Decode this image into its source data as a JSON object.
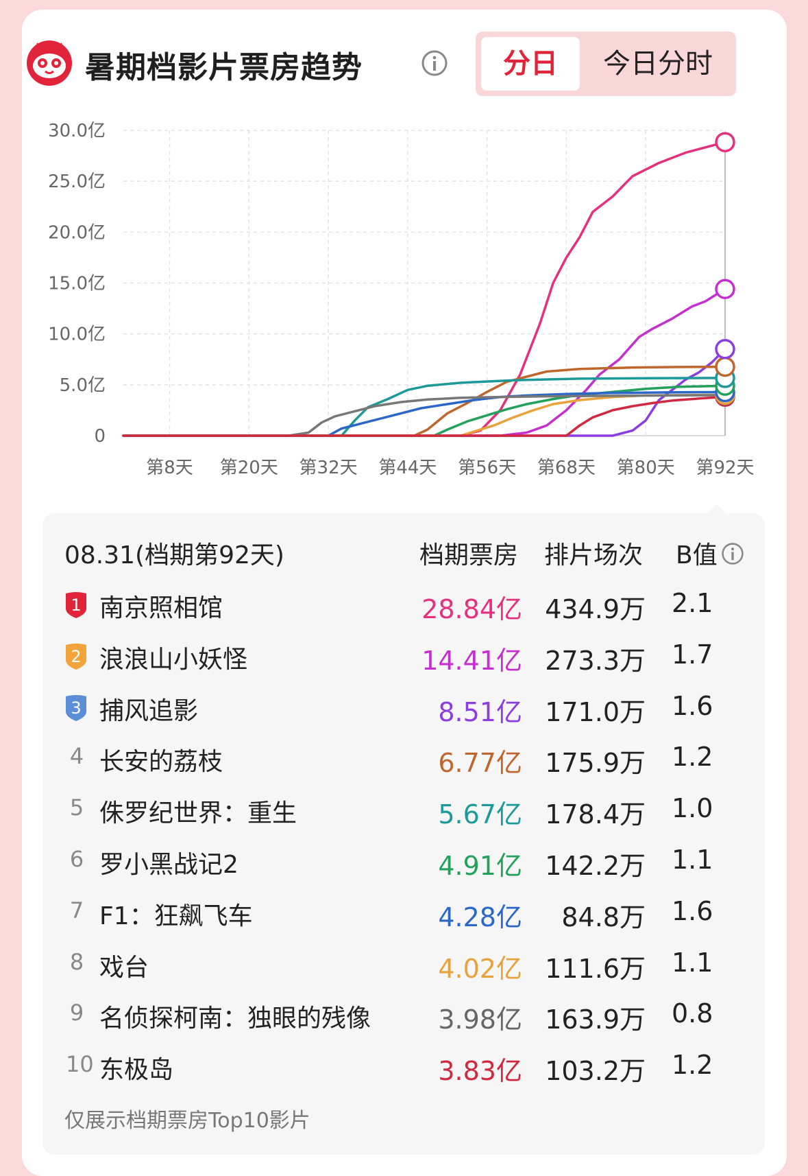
{
  "header": {
    "title": "暑期档影片票房趋势",
    "tabs": [
      {
        "label": "分日",
        "active": true
      },
      {
        "label": "今日分时",
        "active": false
      }
    ]
  },
  "chart_data": {
    "type": "line",
    "y_ticks": [
      "30.0亿",
      "25.0亿",
      "20.0亿",
      "15.0亿",
      "10.0亿",
      "5.0亿",
      "0"
    ],
    "x_ticks": [
      "第8天",
      "第20天",
      "第32天",
      "第44天",
      "第56天",
      "第68天",
      "第80天",
      "第92天"
    ],
    "x_tick_values": [
      8,
      20,
      32,
      44,
      56,
      68,
      80,
      92
    ],
    "xlim": [
      1,
      92
    ],
    "ylim": [
      0,
      30
    ],
    "grid": true,
    "series": [
      {
        "color": "#e5307e",
        "points": [
          [
            1,
            0
          ],
          [
            52,
            0
          ],
          [
            55,
            0.5
          ],
          [
            58,
            2.5
          ],
          [
            61,
            6
          ],
          [
            64,
            11
          ],
          [
            66,
            15
          ],
          [
            68,
            17.5
          ],
          [
            70,
            19.5
          ],
          [
            72,
            22
          ],
          [
            75,
            23.5
          ],
          [
            78,
            25.5
          ],
          [
            82,
            26.8
          ],
          [
            86,
            27.8
          ],
          [
            92,
            28.84
          ]
        ]
      },
      {
        "color": "#c62fcf",
        "points": [
          [
            1,
            0
          ],
          [
            58,
            0
          ],
          [
            62,
            0.3
          ],
          [
            65,
            1
          ],
          [
            68,
            2.5
          ],
          [
            71,
            4.5
          ],
          [
            73,
            6
          ],
          [
            76,
            7.5
          ],
          [
            79,
            9.7
          ],
          [
            81,
            10.5
          ],
          [
            84,
            11.5
          ],
          [
            87,
            12.7
          ],
          [
            89,
            13.2
          ],
          [
            92,
            14.41
          ]
        ]
      },
      {
        "color": "#8c3de0",
        "points": [
          [
            1,
            0
          ],
          [
            75,
            0
          ],
          [
            78,
            0.5
          ],
          [
            80,
            1.5
          ],
          [
            82,
            3.5
          ],
          [
            84,
            4.5
          ],
          [
            86,
            5.5
          ],
          [
            88,
            6.2
          ],
          [
            90,
            7.2
          ],
          [
            92,
            8.51
          ]
        ]
      },
      {
        "color": "#c0662c",
        "points": [
          [
            1,
            0
          ],
          [
            45,
            0
          ],
          [
            47,
            0.6
          ],
          [
            50,
            2.2
          ],
          [
            53,
            3.2
          ],
          [
            56,
            4.3
          ],
          [
            59,
            5.3
          ],
          [
            62,
            5.8
          ],
          [
            65,
            6.3
          ],
          [
            70,
            6.55
          ],
          [
            78,
            6.7
          ],
          [
            85,
            6.75
          ],
          [
            92,
            6.77
          ]
        ]
      },
      {
        "color": "#1c9a99",
        "points": [
          [
            1,
            0
          ],
          [
            34,
            0
          ],
          [
            36,
            1.5
          ],
          [
            38,
            2.8
          ],
          [
            41,
            3.6
          ],
          [
            44,
            4.5
          ],
          [
            47,
            4.9
          ],
          [
            52,
            5.2
          ],
          [
            60,
            5.45
          ],
          [
            70,
            5.6
          ],
          [
            80,
            5.65
          ],
          [
            92,
            5.67
          ]
        ]
      },
      {
        "color": "#23a05a",
        "points": [
          [
            1,
            0
          ],
          [
            48,
            0
          ],
          [
            50,
            0.6
          ],
          [
            53,
            1.4
          ],
          [
            56,
            2
          ],
          [
            59,
            2.6
          ],
          [
            62,
            3.1
          ],
          [
            66,
            3.6
          ],
          [
            70,
            4
          ],
          [
            75,
            4.3
          ],
          [
            80,
            4.6
          ],
          [
            85,
            4.8
          ],
          [
            92,
            4.91
          ]
        ]
      },
      {
        "color": "#2a67c8",
        "points": [
          [
            1,
            0
          ],
          [
            32,
            0
          ],
          [
            34,
            0.7
          ],
          [
            37,
            1.2
          ],
          [
            40,
            1.7
          ],
          [
            43,
            2.2
          ],
          [
            46,
            2.7
          ],
          [
            50,
            3.1
          ],
          [
            54,
            3.5
          ],
          [
            58,
            3.8
          ],
          [
            62,
            3.95
          ],
          [
            68,
            4.1
          ],
          [
            75,
            4.2
          ],
          [
            85,
            4.26
          ],
          [
            92,
            4.28
          ]
        ]
      },
      {
        "color": "#e9a23b",
        "points": [
          [
            1,
            0
          ],
          [
            52,
            0
          ],
          [
            54,
            0.4
          ],
          [
            57,
            1
          ],
          [
            60,
            1.8
          ],
          [
            63,
            2.5
          ],
          [
            66,
            3.1
          ],
          [
            70,
            3.5
          ],
          [
            75,
            3.8
          ],
          [
            80,
            3.95
          ],
          [
            92,
            4.02
          ]
        ]
      },
      {
        "color": "#777777",
        "points": [
          [
            1,
            0
          ],
          [
            26,
            0
          ],
          [
            29,
            0.3
          ],
          [
            31,
            1.3
          ],
          [
            33,
            1.9
          ],
          [
            36,
            2.4
          ],
          [
            39,
            2.9
          ],
          [
            43,
            3.3
          ],
          [
            47,
            3.55
          ],
          [
            52,
            3.72
          ],
          [
            58,
            3.8
          ],
          [
            65,
            3.87
          ],
          [
            75,
            3.92
          ],
          [
            85,
            3.96
          ],
          [
            92,
            3.98
          ]
        ]
      },
      {
        "color": "#d0283f",
        "points": [
          [
            1,
            0
          ],
          [
            68,
            0
          ],
          [
            70,
            1
          ],
          [
            72,
            1.8
          ],
          [
            75,
            2.5
          ],
          [
            78,
            2.9
          ],
          [
            81,
            3.2
          ],
          [
            84,
            3.45
          ],
          [
            88,
            3.65
          ],
          [
            92,
            3.83
          ]
        ]
      }
    ]
  },
  "table": {
    "date_label": "08.31(档期第92天)",
    "col_gross": "档期票房",
    "col_shows": "排片场次",
    "col_b": "B值",
    "rows": [
      {
        "rank": "1",
        "name": "南京照相馆",
        "gross": "28.84亿",
        "shows": "434.9万",
        "b": "2.1",
        "color": "#e5307e"
      },
      {
        "rank": "2",
        "name": "浪浪山小妖怪",
        "gross": "14.41亿",
        "shows": "273.3万",
        "b": "1.7",
        "color": "#c62fcf"
      },
      {
        "rank": "3",
        "name": "捕风追影",
        "gross": "8.51亿",
        "shows": "171.0万",
        "b": "1.6",
        "color": "#8c3de0"
      },
      {
        "rank": "4",
        "name": "长安的荔枝",
        "gross": "6.77亿",
        "shows": "175.9万",
        "b": "1.2",
        "color": "#c0662c"
      },
      {
        "rank": "5",
        "name": "侏罗纪世界：重生",
        "gross": "5.67亿",
        "shows": "178.4万",
        "b": "1.0",
        "color": "#1c9a99"
      },
      {
        "rank": "6",
        "name": "罗小黑战记2",
        "gross": "4.91亿",
        "shows": "142.2万",
        "b": "1.1",
        "color": "#23a05a"
      },
      {
        "rank": "7",
        "name": "F1：狂飙飞车",
        "gross": "4.28亿",
        "shows": "84.8万",
        "b": "1.6",
        "color": "#2a67c8"
      },
      {
        "rank": "8",
        "name": "戏台",
        "gross": "4.02亿",
        "shows": "111.6万",
        "b": "1.1",
        "color": "#e9a23b"
      },
      {
        "rank": "9",
        "name": "名侦探柯南：独眼的残像",
        "gross": "3.98亿",
        "shows": "163.9万",
        "b": "0.8",
        "color": "#666666"
      },
      {
        "rank": "10",
        "name": "东极岛",
        "gross": "3.83亿",
        "shows": "103.2万",
        "b": "1.2",
        "color": "#d0283f"
      }
    ],
    "badge_colors": [
      "#e1243a",
      "#f2a33a",
      "#5b8ed6"
    ]
  },
  "footnote": "仅展示档期票房Top10影片"
}
